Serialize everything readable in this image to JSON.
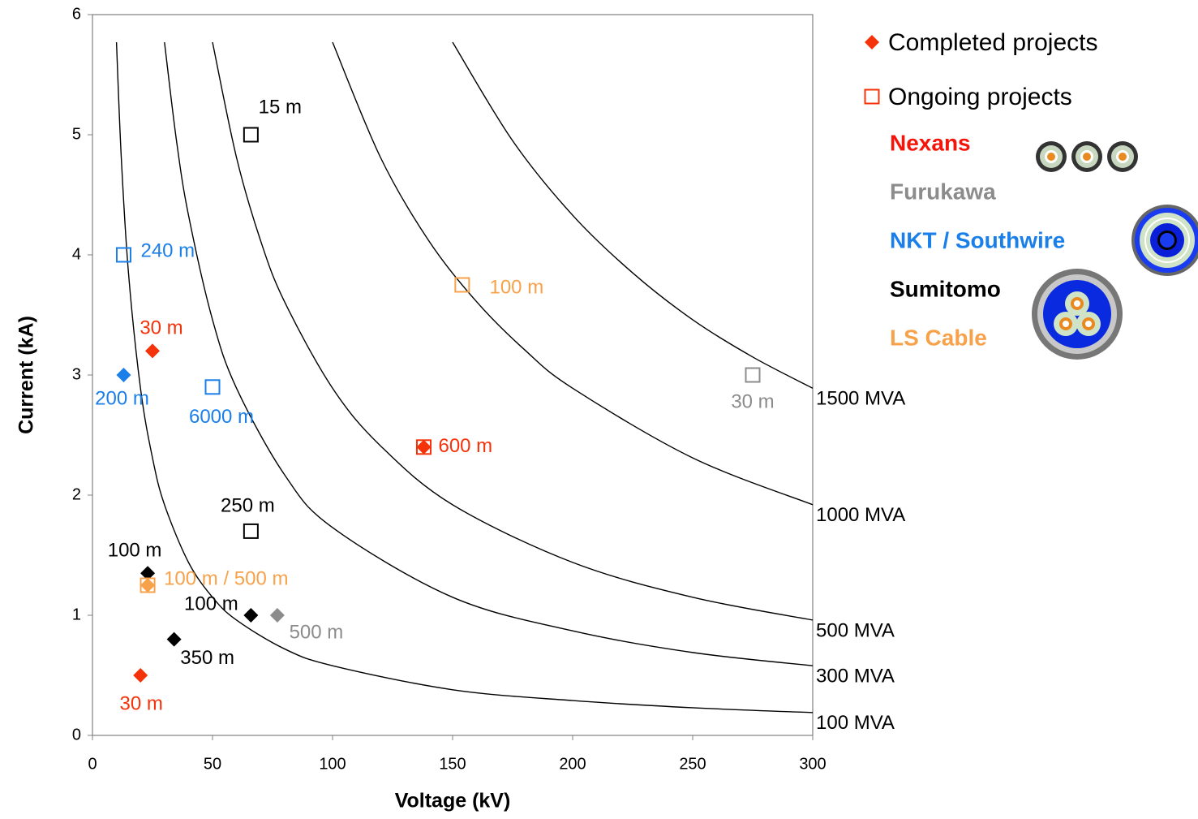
{
  "chart_data": {
    "type": "scatter",
    "xlabel": "Voltage  (kV)",
    "ylabel": "Current  (kA)",
    "xlim": [
      0,
      300
    ],
    "ylim": [
      0,
      6
    ],
    "xticks": [
      0,
      50,
      100,
      150,
      200,
      250,
      300
    ],
    "yticks": [
      0,
      1,
      2,
      3,
      4,
      5,
      6
    ],
    "legend_position": "right",
    "series": [
      {
        "name": "Completed projects",
        "marker": "diamond",
        "color": "#f5330a",
        "x": [
          25,
          13,
          20,
          138,
          23,
          23,
          34,
          66,
          77
        ],
        "values": [
          3.2,
          3.0,
          0.5,
          2.4,
          1.35,
          1.25,
          0.8,
          1.0,
          1.0
        ],
        "colors": [
          "#f5330a",
          "#1a7fe8",
          "#f5330a",
          "#f5330a",
          "#000000",
          "#f7a24a",
          "#000000",
          "#000000",
          "#8c8c8c"
        ],
        "labels": [
          "30 m",
          "200 m",
          "30 m",
          "600 m",
          "100 m",
          null,
          "350 m",
          "100 m",
          "500 m"
        ]
      },
      {
        "name": "Ongoing projects",
        "marker": "square",
        "color": "#f5330a",
        "x": [
          66,
          13,
          50,
          154,
          275,
          138,
          66,
          23
        ],
        "values": [
          5.0,
          4.0,
          2.9,
          3.75,
          3.0,
          2.4,
          1.7,
          1.25
        ],
        "colors": [
          "#000000",
          "#1a7fe8",
          "#1a7fe8",
          "#f7a24a",
          "#8c8c8c",
          "#f5330a",
          "#000000",
          "#f7a24a"
        ],
        "labels": [
          "15 m",
          "240 m",
          "6000 m",
          "100 m",
          "30 m",
          null,
          "250 m",
          "100 m / 500 m"
        ]
      }
    ],
    "curves": [
      {
        "name": "100 MVA",
        "color": "#000000",
        "x": [
          10,
          12,
          15,
          20,
          25,
          30,
          40,
          50,
          60,
          80,
          100,
          150,
          200,
          250,
          300
        ],
        "values": [
          5.77,
          4.81,
          3.85,
          2.89,
          2.31,
          1.92,
          1.44,
          1.15,
          0.96,
          0.72,
          0.58,
          0.38,
          0.29,
          0.23,
          0.19
        ]
      },
      {
        "name": "300 MVA",
        "color": "#000000",
        "x": [
          30,
          35,
          40,
          50,
          60,
          80,
          100,
          150,
          200,
          250,
          300
        ],
        "values": [
          5.77,
          4.95,
          4.33,
          3.46,
          2.89,
          2.17,
          1.73,
          1.15,
          0.87,
          0.69,
          0.58
        ]
      },
      {
        "name": "500 MVA",
        "color": "#000000",
        "x": [
          50,
          60,
          70,
          80,
          100,
          120,
          150,
          200,
          250,
          300
        ],
        "values": [
          5.77,
          4.81,
          4.12,
          3.61,
          2.89,
          2.41,
          1.92,
          1.44,
          1.15,
          0.96
        ]
      },
      {
        "name": "1000 MVA",
        "color": "#000000",
        "x": [
          100,
          120,
          140,
          160,
          180,
          200,
          250,
          300
        ],
        "values": [
          5.77,
          4.81,
          4.12,
          3.61,
          3.21,
          2.89,
          2.31,
          1.92
        ]
      },
      {
        "name": "1500 MVA",
        "color": "#000000",
        "x": [
          150,
          175,
          200,
          225,
          250,
          275,
          300
        ],
        "values": [
          5.77,
          4.95,
          4.33,
          3.85,
          3.46,
          3.15,
          2.89
        ]
      }
    ],
    "companies": [
      {
        "name": "Nexans",
        "color": "#f5140a"
      },
      {
        "name": "Furukawa",
        "color": "#8c8c8c"
      },
      {
        "name": "NKT / Southwire",
        "color": "#1a7fe8"
      },
      {
        "name": "Sumitomo",
        "color": "#000000"
      },
      {
        "name": "LS Cable",
        "color": "#f7a24a"
      }
    ]
  }
}
